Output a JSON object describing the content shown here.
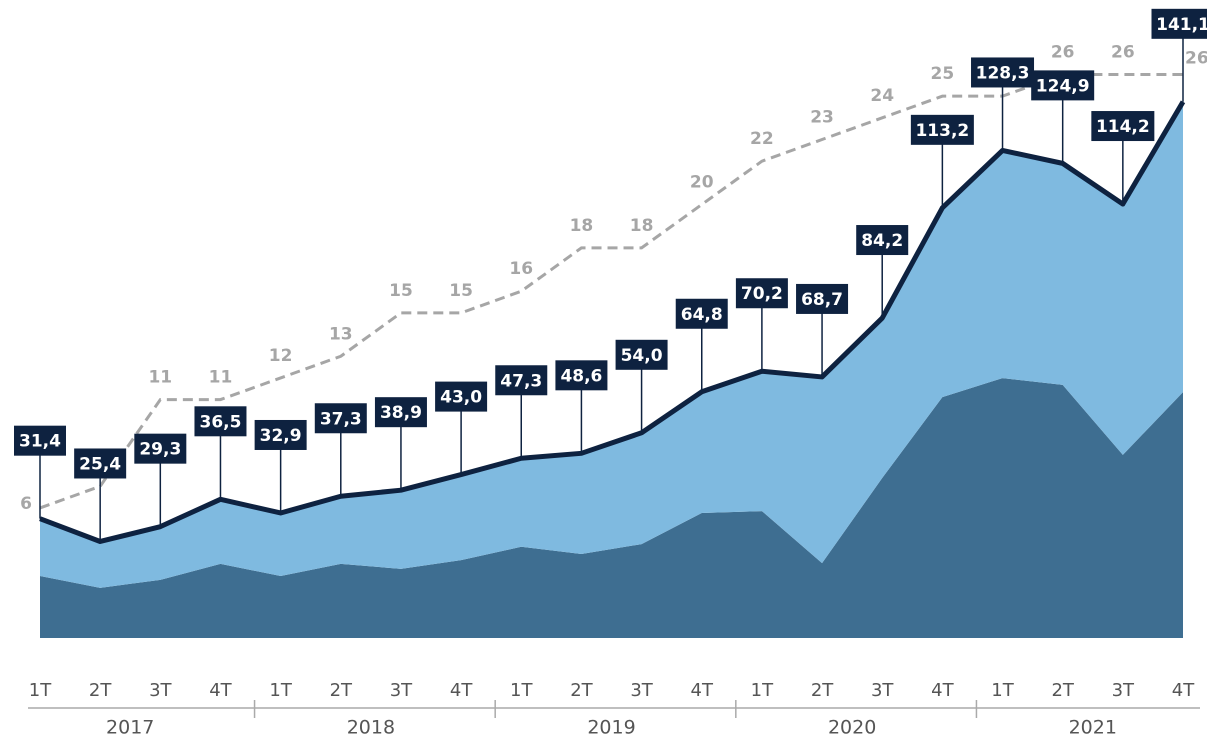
{
  "chart_data": {
    "type": "stacked-area-line",
    "categories": [
      "1T",
      "2T",
      "3T",
      "4T",
      "1T",
      "2T",
      "3T",
      "4T",
      "1T",
      "2T",
      "3T",
      "4T",
      "1T",
      "2T",
      "3T",
      "4T",
      "1T",
      "2T",
      "3T",
      "4T"
    ],
    "groups": [
      "2017",
      "2018",
      "2019",
      "2020",
      "2021"
    ],
    "ylim": [
      0,
      150
    ],
    "y2lim": [
      0,
      26.3
    ],
    "series": [
      {
        "color": "#3e6e91",
        "values": [
          16.3,
          13.2,
          15.3,
          19.5,
          16.3,
          19.5,
          18.2,
          20.5,
          24.0,
          22.1,
          24.7,
          32.9,
          33.4,
          19.7,
          42.1,
          63.4,
          68.4,
          66.6,
          48.2,
          64.7
        ]
      },
      {
        "color": "#7fbae0",
        "values": [
          15.1,
          12.2,
          14.0,
          17.0,
          16.6,
          17.8,
          20.7,
          22.5,
          23.3,
          26.5,
          29.3,
          31.9,
          36.8,
          49.0,
          42.1,
          49.8,
          59.9,
          58.3,
          66.0,
          76.4
        ]
      }
    ],
    "total": {
      "color": "#0e2240",
      "values": [
        31.4,
        25.4,
        29.3,
        36.5,
        32.9,
        37.3,
        38.9,
        43.0,
        47.3,
        48.6,
        54.0,
        64.8,
        70.2,
        68.7,
        84.2,
        113.2,
        128.3,
        124.9,
        114.2,
        141.1
      ],
      "value_labels": [
        "31,4",
        "25,4",
        "29,3",
        "36,5",
        "32,9",
        "37,3",
        "38,9",
        "43,0",
        "47,3",
        "48,6",
        "54,0",
        "64,8",
        "70,2",
        "68,7",
        "84,2",
        "113,2",
        "128,3",
        "124,9",
        "114,2",
        "141,1"
      ]
    },
    "dashed": {
      "color": "#a6a6a6",
      "axis": "y2",
      "values": [
        6,
        7,
        11,
        11,
        12,
        13,
        15,
        15,
        16,
        18,
        18,
        20,
        22,
        23,
        24,
        25,
        25,
        26,
        26,
        26
      ]
    }
  }
}
